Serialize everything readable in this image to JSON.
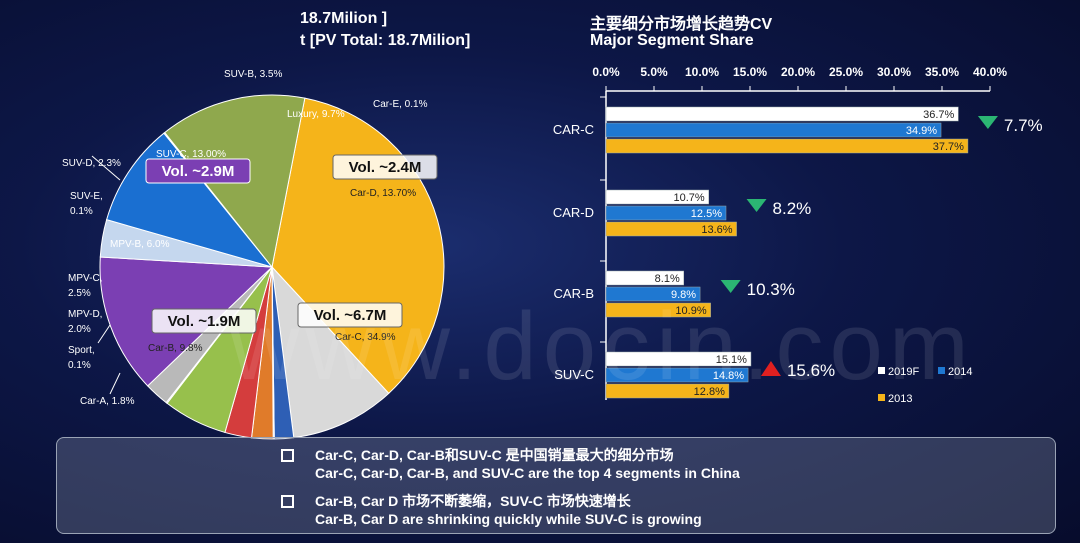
{
  "header": {
    "left_line1": "18.7Milion ]",
    "left_line2": "t [PV Total: 18.7Milion]",
    "right_line1": "主要细分市场增长趋势CV",
    "right_line2": "Major Segment Share"
  },
  "watermark": "www.docin.com",
  "notes": [
    {
      "cn": "Car-C, Car-D, Car-B和SUV-C 是中国销量最大的细分市场",
      "en": "Car-C, Car-D, Car-B, and SUV-C are the top 4 segments in China"
    },
    {
      "cn": "Car-B, Car D 市场不断萎缩，SUV-C 市场快速增长",
      "en": "Car-B, Car D are shrinking quickly while SUV-C is growing"
    }
  ],
  "colors": {
    "pie": {
      "Car-C": "#f5b41a",
      "Car-B": "#d9d9d9",
      "Car-A": "#2e5fb5",
      "Sport": "#3a63c4",
      "MPV-D": "#e07b2a",
      "MPV-C": "#d43d3d",
      "MPV-B": "#97c04c",
      "SUV-E": "#8c74b8",
      "SUV-D": "#b9b9b9",
      "SUV-C": "#7b3fb3",
      "SUV-B": "#c5d7ee",
      "Luxury": "#1a6fd1",
      "Car-E": "#4a7b30",
      "Car-D": "#8fa84d"
    },
    "series": {
      "2019F": "#ffffff",
      "2014": "#1f78d1",
      "2013": "#f5b41a"
    },
    "down": "#2bb673",
    "up": "#e02020"
  },
  "chart_data": [
    {
      "type": "pie",
      "title": "",
      "slices": [
        {
          "name": "Car-C",
          "label": "Car-C, 34.9%",
          "value": 34.9
        },
        {
          "name": "Car-B",
          "label": "Car-B, 9.8%",
          "value": 9.8
        },
        {
          "name": "Car-A",
          "label": "Car-A, 1.8%",
          "value": 1.8
        },
        {
          "name": "Sport",
          "label": "Sport,\n0.1%",
          "value": 0.1
        },
        {
          "name": "MPV-D",
          "label": "MPV-D,\n2.0%",
          "value": 2.0
        },
        {
          "name": "MPV-C",
          "label": "MPV-C,\n2.5%",
          "value": 2.5
        },
        {
          "name": "MPV-B",
          "label": "MPV-B, 6.0%",
          "value": 6.0
        },
        {
          "name": "SUV-E",
          "label": "SUV-E,\n0.1%",
          "value": 0.1
        },
        {
          "name": "SUV-D",
          "label": "SUV-D, 2.3%",
          "value": 2.3
        },
        {
          "name": "SUV-C",
          "label": "SUV-C, 13.00%",
          "value": 13.0
        },
        {
          "name": "SUV-B",
          "label": "SUV-B, 3.5%",
          "value": 3.5
        },
        {
          "name": "Luxury",
          "label": "Luxury, 9.7%",
          "value": 9.7
        },
        {
          "name": "Car-E",
          "label": "Car-E, 0.1%",
          "value": 0.1
        },
        {
          "name": "Car-D",
          "label": "Car-D, 13.70%",
          "value": 13.7
        }
      ],
      "annotations": [
        {
          "segment": "SUV-C",
          "text": "Vol. ~2.9M"
        },
        {
          "segment": "Car-D",
          "text": "Vol. ~2.4M"
        },
        {
          "segment": "Car-B",
          "text": "Vol. ~1.9M"
        },
        {
          "segment": "Car-C",
          "text": "Vol. ~6.7M"
        }
      ]
    },
    {
      "type": "bar",
      "orientation": "horizontal",
      "title": "",
      "categories": [
        "CAR-C",
        "CAR-D",
        "CAR-B",
        "SUV-C"
      ],
      "series": [
        {
          "name": "2019F",
          "values": [
            36.7,
            10.7,
            8.1,
            15.1
          ],
          "labels": [
            "36.7%",
            "10.7%",
            "8.1%",
            "15.1%"
          ]
        },
        {
          "name": "2014",
          "values": [
            34.9,
            12.5,
            9.8,
            14.8
          ],
          "labels": [
            "34.9%",
            "12.5%",
            "9.8%",
            "14.8%"
          ]
        },
        {
          "name": "2013",
          "values": [
            37.7,
            13.6,
            10.9,
            12.8
          ],
          "labels": [
            "37.7%",
            "13.6%",
            "10.9%",
            "12.8%"
          ]
        }
      ],
      "xlim": [
        0,
        40
      ],
      "xticks": [
        "0.0%",
        "5.0%",
        "10.0%",
        "15.0%",
        "20.0%",
        "25.0%",
        "30.0%",
        "35.0%",
        "40.0%"
      ],
      "axis_position": "top",
      "legend_position": "bottom-right",
      "growth": [
        {
          "category": "CAR-C",
          "text": "7.7%",
          "direction": "down"
        },
        {
          "category": "CAR-D",
          "text": "8.2%",
          "direction": "down"
        },
        {
          "category": "CAR-B",
          "text": "10.3%",
          "direction": "down"
        },
        {
          "category": "SUV-C",
          "text": "15.6%",
          "direction": "up"
        }
      ]
    }
  ]
}
